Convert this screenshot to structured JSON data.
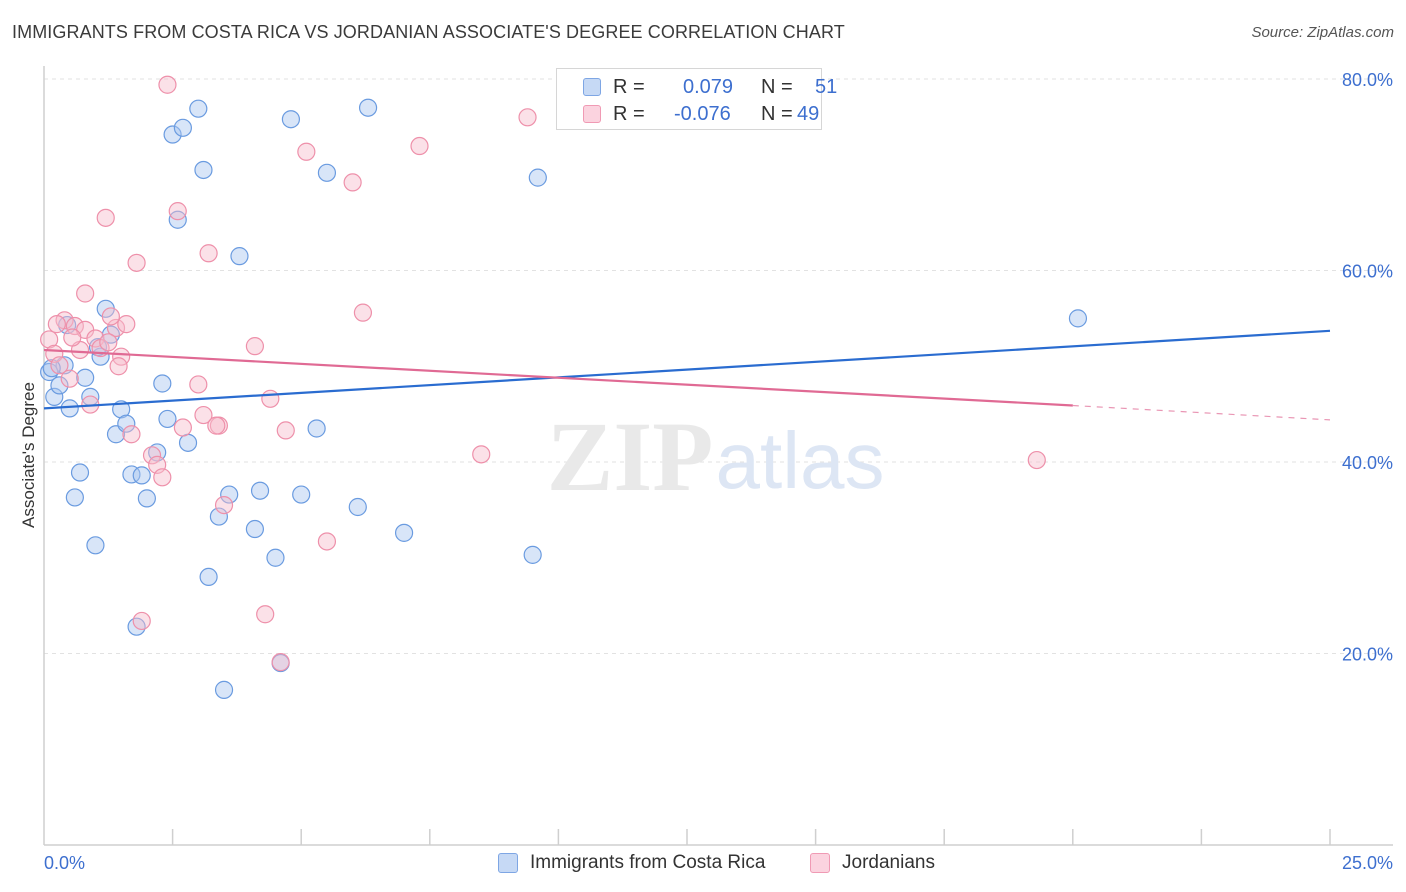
{
  "header": {
    "title": "IMMIGRANTS FROM COSTA RICA VS JORDANIAN ASSOCIATE'S DEGREE CORRELATION CHART",
    "source": "Source: ZipAtlas.com"
  },
  "watermark": {
    "zip": "ZIP",
    "atlas": "atlas"
  },
  "legend": {
    "r_label": "R =",
    "n_label": "N =",
    "series1": {
      "r": "0.079",
      "n": "51",
      "color": "#a9c6f0"
    },
    "series2": {
      "r": "-0.076",
      "n": "49",
      "color": "#f7bccd"
    }
  },
  "bottom_legend": {
    "series1": "Immigrants from Costa Rica",
    "series2": "Jordanians"
  },
  "chart_data": {
    "type": "scatter",
    "title": "IMMIGRANTS FROM COSTA RICA VS JORDANIAN ASSOCIATE'S DEGREE CORRELATION CHART",
    "xlabel": "",
    "ylabel": "Associate's Degree",
    "xlim": [
      0,
      25
    ],
    "ylim": [
      0,
      80
    ],
    "x_tick_labels": [
      "0.0%",
      "25.0%"
    ],
    "y_ticks": [
      20,
      40,
      60,
      80
    ],
    "y_tick_labels": [
      "20.0%",
      "40.0%",
      "60.0%",
      "80.0%"
    ],
    "grid": true,
    "series": [
      {
        "name": "Immigrants from Costa Rica",
        "color": "#a9c6f0",
        "stroke": "#6a9be0",
        "line_color": "#2a6cd0",
        "trend": {
          "x": [
            0,
            25
          ],
          "y": [
            45.6,
            53.7
          ]
        },
        "points": [
          [
            0.1,
            49.4
          ],
          [
            0.2,
            46.8
          ],
          [
            0.3,
            48.0
          ],
          [
            0.4,
            50.1
          ],
          [
            0.5,
            45.6
          ],
          [
            0.7,
            38.9
          ],
          [
            0.8,
            48.8
          ],
          [
            0.6,
            36.3
          ],
          [
            0.9,
            46.8
          ],
          [
            1.0,
            31.3
          ],
          [
            1.1,
            51.0
          ],
          [
            1.2,
            56.0
          ],
          [
            1.4,
            42.9
          ],
          [
            1.5,
            45.5
          ],
          [
            1.7,
            38.7
          ],
          [
            1.8,
            22.8
          ],
          [
            1.9,
            38.6
          ],
          [
            2.0,
            36.2
          ],
          [
            2.2,
            41.0
          ],
          [
            2.3,
            48.2
          ],
          [
            2.5,
            74.2
          ],
          [
            2.6,
            65.3
          ],
          [
            2.7,
            74.9
          ],
          [
            3.0,
            76.9
          ],
          [
            3.1,
            70.5
          ],
          [
            3.2,
            28.0
          ],
          [
            3.4,
            34.3
          ],
          [
            3.5,
            16.2
          ],
          [
            3.6,
            36.6
          ],
          [
            3.8,
            61.5
          ],
          [
            4.1,
            33.0
          ],
          [
            4.5,
            30.0
          ],
          [
            4.6,
            19.0
          ],
          [
            4.8,
            75.8
          ],
          [
            5.0,
            36.6
          ],
          [
            5.3,
            43.5
          ],
          [
            5.5,
            70.2
          ],
          [
            6.1,
            35.3
          ],
          [
            6.3,
            77.0
          ],
          [
            7.0,
            32.6
          ],
          [
            9.5,
            30.3
          ],
          [
            9.6,
            69.7
          ],
          [
            20.1,
            55.0
          ],
          [
            1.6,
            44.0
          ],
          [
            2.4,
            44.5
          ],
          [
            1.3,
            53.3
          ],
          [
            0.15,
            49.8
          ],
          [
            2.8,
            42.0
          ],
          [
            1.05,
            52.0
          ],
          [
            4.2,
            37.0
          ],
          [
            0.45,
            54.3
          ]
        ]
      },
      {
        "name": "Jordanians",
        "color": "#f7bccd",
        "stroke": "#ee90aa",
        "line_color": "#e06a94",
        "trend": {
          "x": [
            0,
            20
          ],
          "y": [
            51.7,
            45.9
          ]
        },
        "trend_dashed": {
          "x": [
            20,
            25
          ],
          "y": [
            45.9,
            44.4
          ]
        },
        "points": [
          [
            0.1,
            52.8
          ],
          [
            0.2,
            51.3
          ],
          [
            0.3,
            50.1
          ],
          [
            0.4,
            54.8
          ],
          [
            0.5,
            48.7
          ],
          [
            0.6,
            54.2
          ],
          [
            0.7,
            51.7
          ],
          [
            0.8,
            53.8
          ],
          [
            0.9,
            46.0
          ],
          [
            1.0,
            52.9
          ],
          [
            1.1,
            51.9
          ],
          [
            1.2,
            65.5
          ],
          [
            1.4,
            54.0
          ],
          [
            1.5,
            51.0
          ],
          [
            1.6,
            54.4
          ],
          [
            1.7,
            42.9
          ],
          [
            1.8,
            60.8
          ],
          [
            1.9,
            23.4
          ],
          [
            2.1,
            40.7
          ],
          [
            2.2,
            39.7
          ],
          [
            2.4,
            79.4
          ],
          [
            2.6,
            66.2
          ],
          [
            2.7,
            43.6
          ],
          [
            3.0,
            48.1
          ],
          [
            3.1,
            44.9
          ],
          [
            3.2,
            61.8
          ],
          [
            3.4,
            43.8
          ],
          [
            3.5,
            35.5
          ],
          [
            4.1,
            52.1
          ],
          [
            4.4,
            46.6
          ],
          [
            4.6,
            19.1
          ],
          [
            4.7,
            43.3
          ],
          [
            5.1,
            72.4
          ],
          [
            5.5,
            31.7
          ],
          [
            6.0,
            69.2
          ],
          [
            7.3,
            73.0
          ],
          [
            8.5,
            40.8
          ],
          [
            9.4,
            76.0
          ],
          [
            4.3,
            24.1
          ],
          [
            1.3,
            55.2
          ],
          [
            2.3,
            38.4
          ],
          [
            0.8,
            57.6
          ],
          [
            1.45,
            50.0
          ],
          [
            0.25,
            54.4
          ],
          [
            3.35,
            43.8
          ],
          [
            6.2,
            55.6
          ],
          [
            19.3,
            40.2
          ],
          [
            1.25,
            52.5
          ],
          [
            0.55,
            53.0
          ]
        ]
      }
    ]
  }
}
